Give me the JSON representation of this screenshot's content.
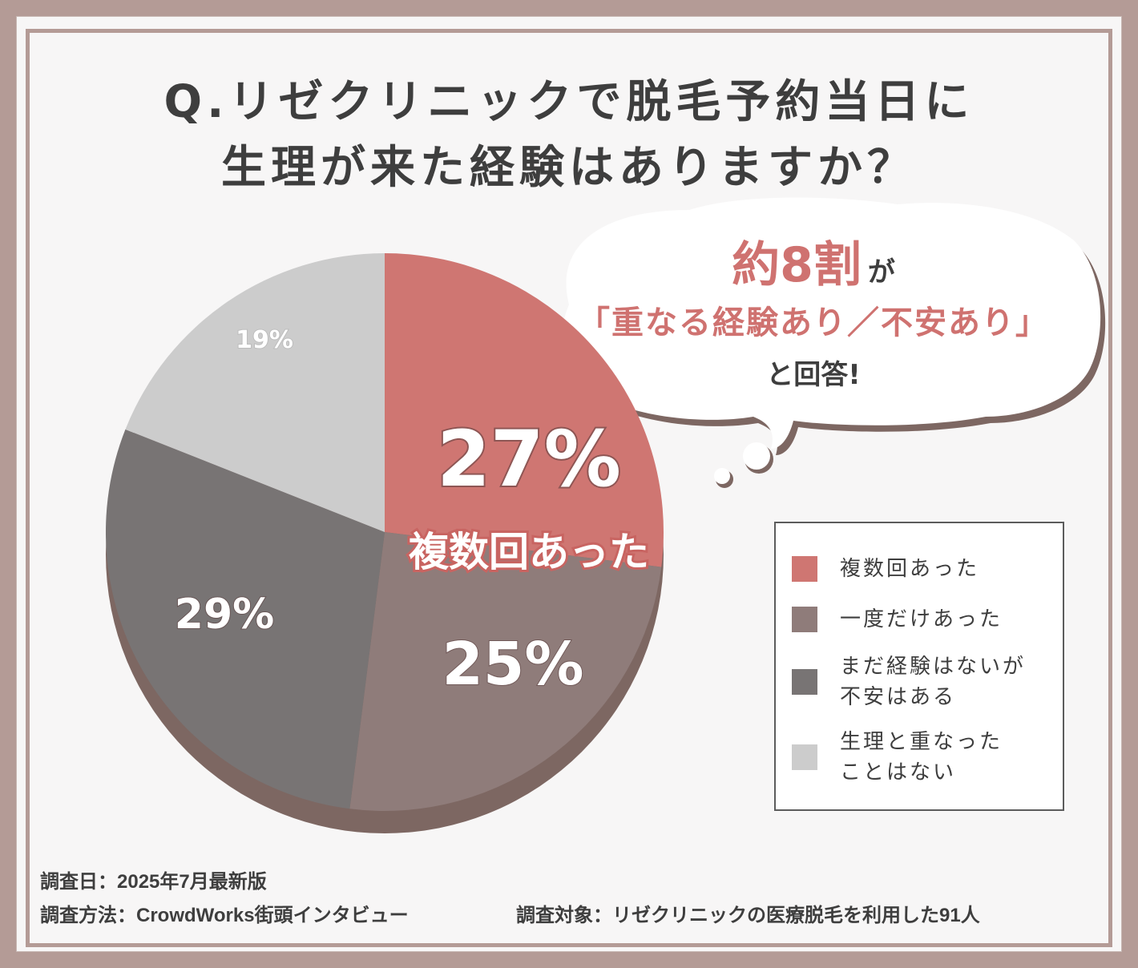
{
  "title": {
    "line1": "Q.リゼクリニックで脱毛予約当日に",
    "line2": "生理が来た経験はありますか？"
  },
  "bubble": {
    "highlight": "約8割",
    "highlight_suffix": "が",
    "quote": "「重なる経験あり／不安あり」",
    "answer": "と回答!"
  },
  "chart_data": {
    "type": "pie",
    "categories": [
      "複数回あった",
      "一度だけあった",
      "まだ経験はないが不安はある",
      "生理と重なったことはない"
    ],
    "values": [
      27,
      25,
      29,
      19
    ],
    "labels": [
      "27%",
      "25%",
      "29%",
      "19%"
    ],
    "featured_caption": "複数回あった",
    "colors": [
      "#cf7672",
      "#8f7c7a",
      "#787474",
      "#cccccc"
    ],
    "shadow_color": "#7d6762",
    "legend_position": "right"
  },
  "legend": [
    {
      "label": "複数回あった",
      "color": "#cf7672"
    },
    {
      "label": "一度だけあった",
      "color": "#8f7c7a"
    },
    {
      "label": "まだ経験はないが\n不安はある",
      "color": "#787474"
    },
    {
      "label": "生理と重なった\nことはない",
      "color": "#cccccc"
    }
  ],
  "footer": {
    "date": "調査日：2025年7月最新版",
    "method": "調査方法：CrowdWorks街頭インタビュー",
    "target": "調査対象：リゼクリニックの医療脱毛を利用した91人"
  }
}
